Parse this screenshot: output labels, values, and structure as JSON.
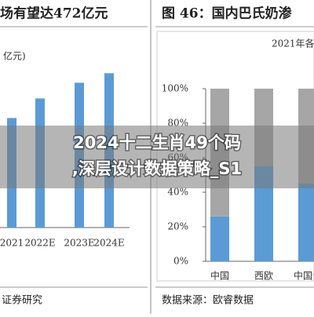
{
  "chart_data": [
    {
      "type": "bar",
      "title": "场有望达472亿元",
      "y_label": "亿元)",
      "categories": [
        "2021",
        "2022E",
        "2023E",
        "2024E"
      ],
      "values": [
        335,
        395,
        443,
        472
      ],
      "color": "#5b9bd5",
      "ylim": [
        0,
        600
      ],
      "source": "证券研究"
    },
    {
      "type": "stacked_bar",
      "title": "图 46：国内巴氏奶渗",
      "subtitle": "2021年各",
      "categories": [
        "中国",
        "西欧",
        "中国台"
      ],
      "series": [
        {
          "color": "#5b9bd5",
          "values": [
            26,
            55,
            45
          ]
        },
        {
          "color": "#a6a6a6",
          "values": [
            74,
            45,
            55
          ]
        }
      ],
      "ylim": [
        0,
        100
      ],
      "yticks": [
        {
          "value": 0,
          "label": "0%"
        },
        {
          "value": 20,
          "label": "20%"
        },
        {
          "value": 40,
          "label": "40%"
        },
        {
          "value": 60,
          "label": "60%"
        },
        {
          "value": 80,
          "label": "80%"
        },
        {
          "value": 100,
          "label": "100%"
        }
      ],
      "source": "数据来源：欧睿数据"
    }
  ],
  "overlay": {
    "line1": "2024十二生肖49个码",
    "line2": ",深层设计数据策略_S1"
  }
}
